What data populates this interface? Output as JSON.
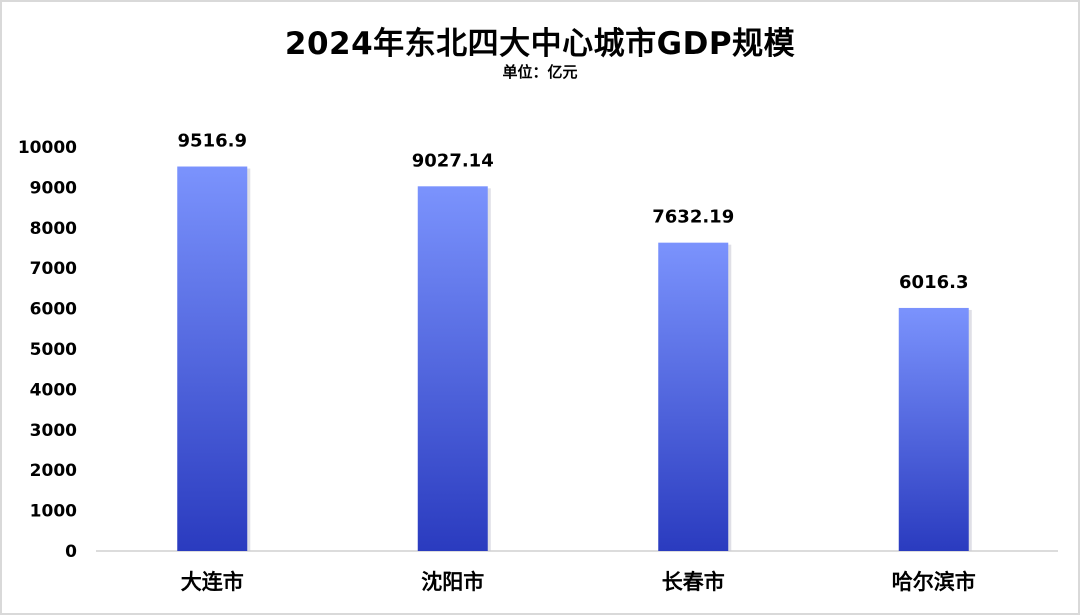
{
  "chart_data": {
    "type": "bar",
    "title": "2024年东北四大中心城市GDP规模",
    "subtitle": "单位：亿元",
    "categories": [
      "大连市",
      "沈阳市",
      "长春市",
      "哈尔滨市"
    ],
    "values": [
      9516.9,
      9027.14,
      7632.19,
      6016.3
    ],
    "value_labels": [
      "9516.9",
      "9027.14",
      "7632.19",
      "6016.3"
    ],
    "yticks": [
      "0",
      "1000",
      "2000",
      "3000",
      "4000",
      "5000",
      "6000",
      "7000",
      "8000",
      "9000",
      "10000"
    ],
    "ylim": [
      0,
      10000
    ],
    "grid": false,
    "legend": "none",
    "xlabel": "",
    "ylabel": "",
    "colors": {
      "bar_top": "#7b93fd",
      "bar_bottom": "#2a3bbf",
      "axis": "#d0d0d0"
    }
  }
}
